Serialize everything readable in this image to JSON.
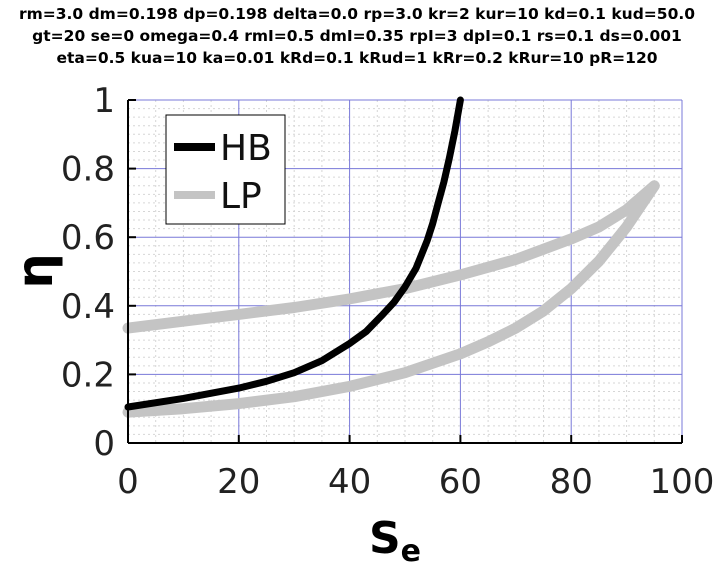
{
  "chart_data": {
    "type": "line",
    "title_lines": [
      "rm=3.0 dm=0.198 dp=0.198 delta=0.0 rp=3.0 kr=2 kur=10 kd=0.1 kud=50.0",
      "gt=20 se=0 omega=0.4 rmI=0.5 dmI=0.35 rpI=3 dpI=0.1 rs=0.1 ds=0.001",
      "eta=0.5 kua=10 ka=0.01 kRd=0.1 kRud=1 kRr=0.2 kRur=10 pR=120"
    ],
    "xlabel_main": "S",
    "xlabel_sub": "e",
    "ylabel": "η",
    "xlim": [
      0,
      100
    ],
    "ylim": [
      0,
      1
    ],
    "xticks": [
      "0",
      "20",
      "40",
      "60",
      "80",
      "100"
    ],
    "yticks": [
      "0",
      "0.2",
      "0.4",
      "0.6",
      "0.8",
      "1"
    ],
    "grid": true,
    "legend_position": "top-left",
    "series": [
      {
        "name": "HB",
        "color": "#000000",
        "x": [
          0,
          10,
          20,
          25,
          30,
          35,
          40,
          43,
          46,
          48,
          50,
          52,
          54,
          55,
          56,
          57,
          58,
          59,
          60
        ],
        "y": [
          0.105,
          0.13,
          0.16,
          0.18,
          0.205,
          0.24,
          0.29,
          0.325,
          0.375,
          0.41,
          0.455,
          0.51,
          0.59,
          0.64,
          0.7,
          0.76,
          0.83,
          0.91,
          1.0
        ]
      },
      {
        "name": "LP",
        "color": "#c4c4c4",
        "x": [
          0,
          10,
          20,
          30,
          40,
          50,
          60,
          70,
          80,
          85,
          90,
          95,
          90,
          85,
          80,
          75,
          70,
          65,
          60,
          50,
          40,
          30,
          20,
          10,
          0
        ],
        "y": [
          0.335,
          0.355,
          0.375,
          0.395,
          0.42,
          0.45,
          0.49,
          0.535,
          0.595,
          0.63,
          0.68,
          0.75,
          0.63,
          0.53,
          0.45,
          0.385,
          0.335,
          0.295,
          0.26,
          0.205,
          0.165,
          0.135,
          0.115,
          0.1,
          0.09
        ]
      }
    ]
  }
}
